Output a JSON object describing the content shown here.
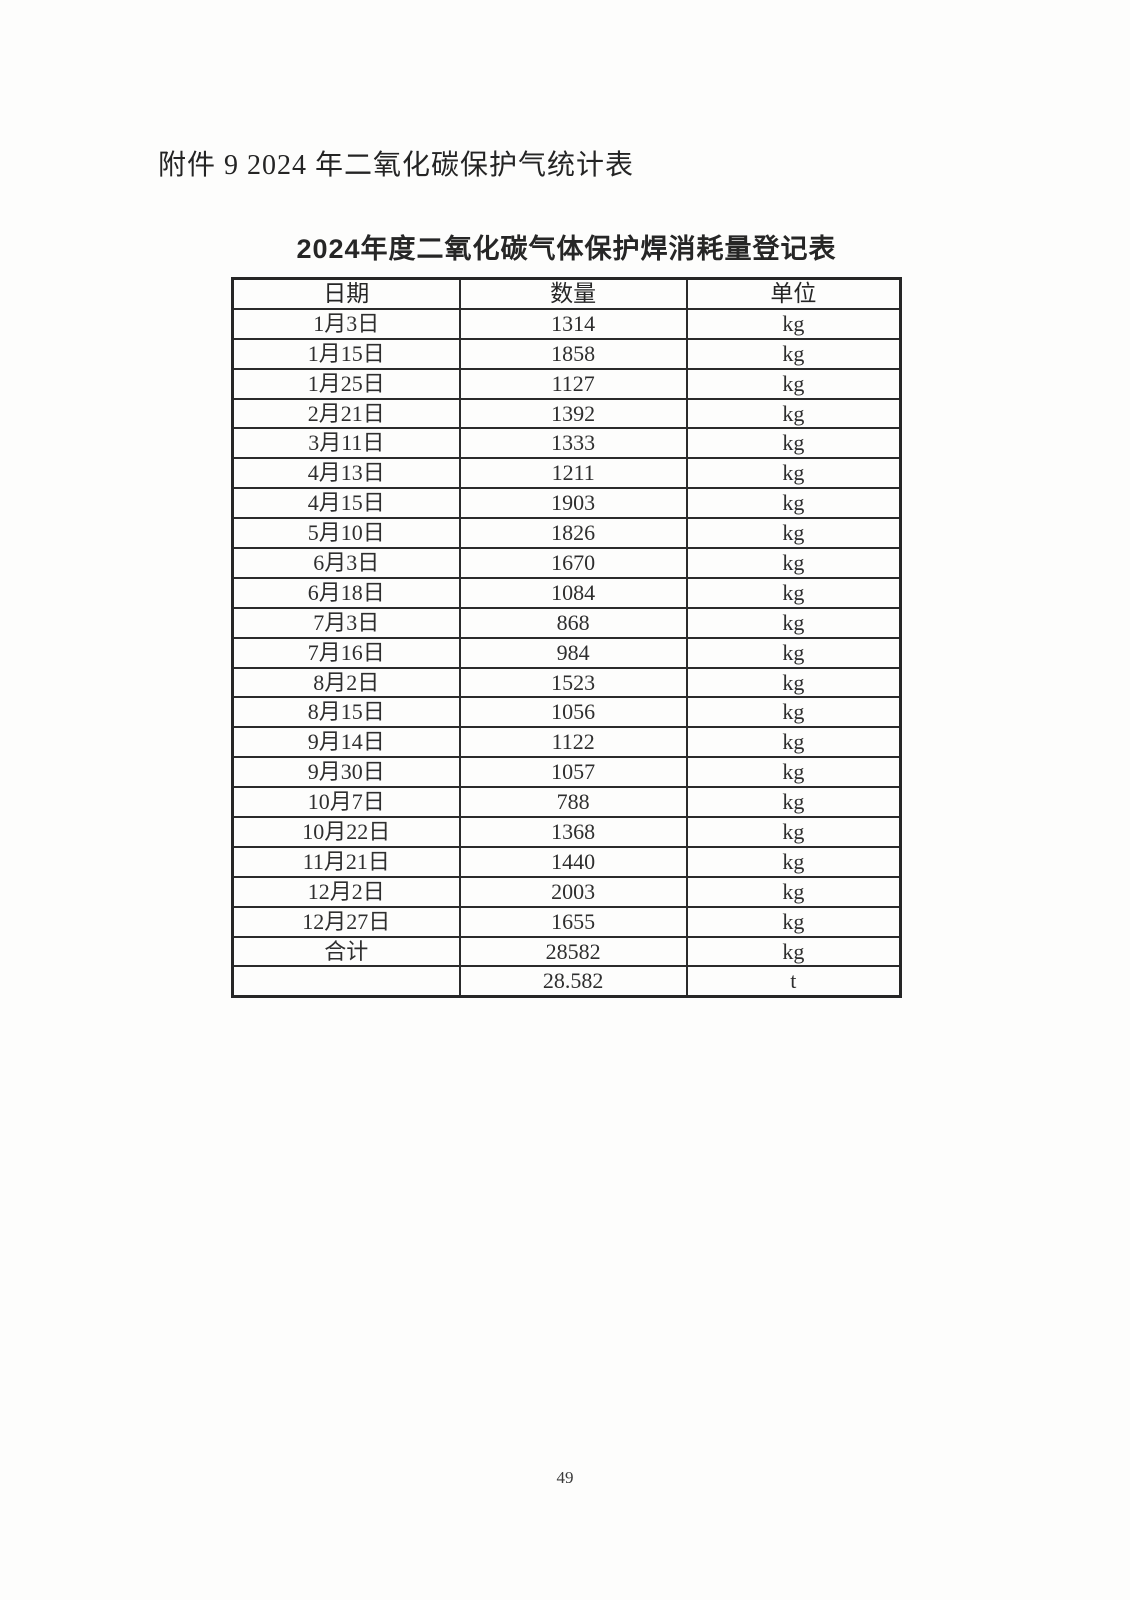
{
  "page": {
    "attachment_heading": "附件 9 2024 年二氧化碳保护气统计表",
    "page_number": "49"
  },
  "colors": {
    "ink": "#262626",
    "table_border": "#2b2b2b",
    "paper": "#fdfdfc"
  },
  "table": {
    "title": "2024年度二氧化碳气体保护焊消耗量登记表",
    "headers": [
      "日期",
      "数量",
      "单位"
    ],
    "rows": [
      [
        "1月3日",
        "1314",
        "kg"
      ],
      [
        "1月15日",
        "1858",
        "kg"
      ],
      [
        "1月25日",
        "1127",
        "kg"
      ],
      [
        "2月21日",
        "1392",
        "kg"
      ],
      [
        "3月11日",
        "1333",
        "kg"
      ],
      [
        "4月13日",
        "1211",
        "kg"
      ],
      [
        "4月15日",
        "1903",
        "kg"
      ],
      [
        "5月10日",
        "1826",
        "kg"
      ],
      [
        "6月3日",
        "1670",
        "kg"
      ],
      [
        "6月18日",
        "1084",
        "kg"
      ],
      [
        "7月3日",
        "868",
        "kg"
      ],
      [
        "7月16日",
        "984",
        "kg"
      ],
      [
        "8月2日",
        "1523",
        "kg"
      ],
      [
        "8月15日",
        "1056",
        "kg"
      ],
      [
        "9月14日",
        "1122",
        "kg"
      ],
      [
        "9月30日",
        "1057",
        "kg"
      ],
      [
        "10月7日",
        "788",
        "kg"
      ],
      [
        "10月22日",
        "1368",
        "kg"
      ],
      [
        "11月21日",
        "1440",
        "kg"
      ],
      [
        "12月2日",
        "2003",
        "kg"
      ],
      [
        "12月27日",
        "1655",
        "kg"
      ],
      [
        "合计",
        "28582",
        "kg"
      ],
      [
        "",
        "28.582",
        "t"
      ]
    ]
  }
}
